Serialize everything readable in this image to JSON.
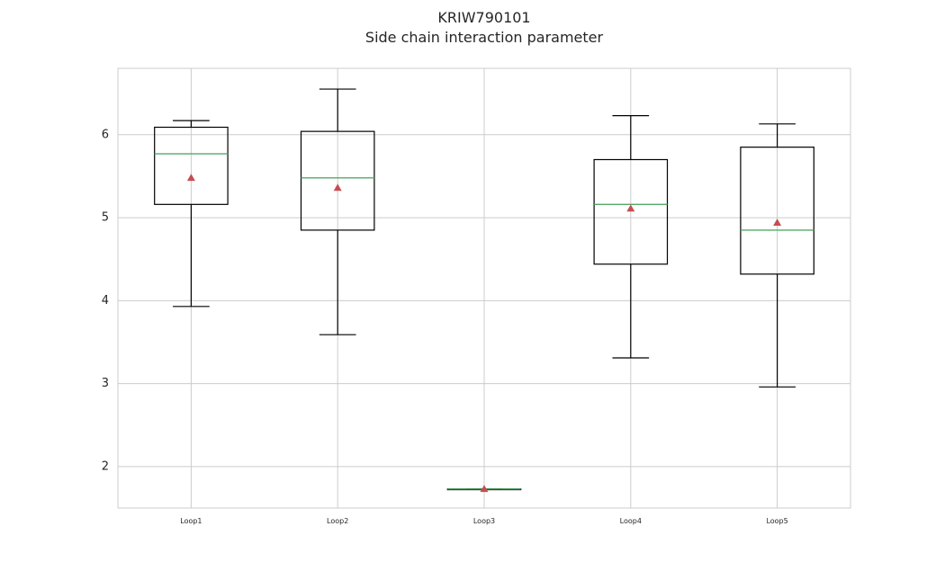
{
  "chart_data": {
    "type": "box",
    "title": "KRIW790101",
    "subtitle": "Side chain interaction parameter",
    "xlabel": "",
    "ylabel": "",
    "ylim": [
      1.5,
      6.8
    ],
    "yticks": [
      "2",
      "3",
      "4",
      "5",
      "6"
    ],
    "grid": true,
    "categories": [
      "Loop1",
      "Loop2",
      "Loop3",
      "Loop4",
      "Loop5"
    ],
    "boxes": [
      {
        "label": "Loop1",
        "whisker_low": 3.93,
        "q1": 5.16,
        "median": 5.77,
        "q3": 6.09,
        "whisker_high": 6.17,
        "mean": 5.48
      },
      {
        "label": "Loop2",
        "whisker_low": 3.59,
        "q1": 4.85,
        "median": 5.48,
        "q3": 6.04,
        "whisker_high": 6.55,
        "mean": 5.36
      },
      {
        "label": "Loop3",
        "whisker_low": 1.73,
        "q1": 1.73,
        "median": 1.73,
        "q3": 1.73,
        "whisker_high": 1.73,
        "mean": 1.73
      },
      {
        "label": "Loop4",
        "whisker_low": 3.31,
        "q1": 4.44,
        "median": 5.16,
        "q3": 5.7,
        "whisker_high": 6.23,
        "mean": 5.11
      },
      {
        "label": "Loop5",
        "whisker_low": 2.96,
        "q1": 4.32,
        "median": 4.85,
        "q3": 5.85,
        "whisker_high": 6.13,
        "mean": 4.94
      }
    ],
    "colors": {
      "box": "#000000",
      "median": "#55a868",
      "mean": "#c44e52",
      "grid": "#cccccc",
      "frame": "#cccccc"
    }
  }
}
